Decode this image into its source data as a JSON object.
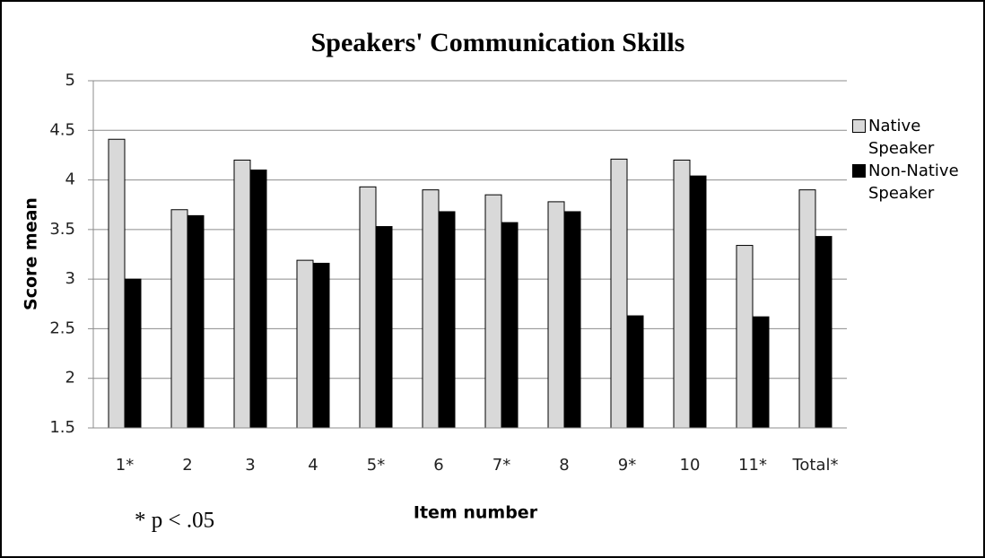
{
  "chart_data": {
    "type": "bar",
    "title": "Speakers' Communication Skills",
    "x_label": "Item number",
    "y_label": "Score mean",
    "annotation": "* p < .05",
    "categories": [
      "1*",
      "2",
      "3",
      "4",
      "5*",
      "6",
      "7*",
      "8",
      "9*",
      "10",
      "11*",
      "Total*"
    ],
    "series": [
      {
        "name": "Native Speaker",
        "color": "#d9d9d9",
        "values": [
          4.41,
          3.7,
          4.2,
          3.19,
          3.93,
          3.9,
          3.85,
          3.78,
          4.21,
          4.2,
          3.34,
          3.9
        ]
      },
      {
        "name": "Non-Native Speaker",
        "color": "#000000",
        "values": [
          3.0,
          3.64,
          4.1,
          3.16,
          3.53,
          3.68,
          3.57,
          3.68,
          2.63,
          4.04,
          2.62,
          3.43
        ]
      }
    ],
    "ylim": [
      1.5,
      5
    ],
    "yticks": [
      1.5,
      2,
      2.5,
      3,
      3.5,
      4,
      4.5,
      5
    ],
    "grid": true,
    "legend": "right"
  }
}
